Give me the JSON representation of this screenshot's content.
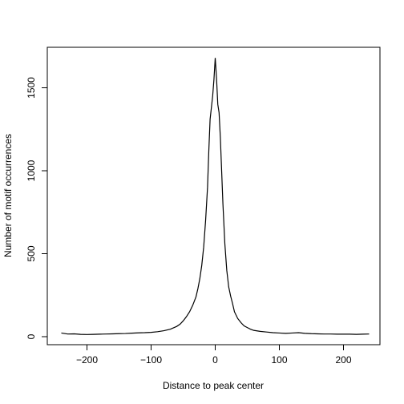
{
  "chart_data": {
    "type": "line",
    "title": "",
    "xlabel": "Distance to peak center",
    "ylabel": "Number of motif occurrences",
    "xlim": [
      -250,
      250
    ],
    "ylim": [
      0,
      1700
    ],
    "xticks": [
      -200,
      -100,
      0,
      100,
      200
    ],
    "xtick_labels": [
      "−200",
      "−100",
      "0",
      "100",
      "200"
    ],
    "yticks": [
      0,
      500,
      1000,
      1500
    ],
    "ytick_labels": [
      "0",
      "500",
      "1000",
      "1500"
    ],
    "grid": false,
    "legend": "none",
    "series": [
      {
        "color": "#000000",
        "x": [
          -240,
          -230,
          -220,
          -210,
          -200,
          -190,
          -180,
          -170,
          -160,
          -150,
          -140,
          -130,
          -120,
          -110,
          -100,
          -90,
          -80,
          -70,
          -60,
          -55,
          -50,
          -45,
          -40,
          -35,
          -30,
          -27,
          -24,
          -21,
          -18,
          -15,
          -12,
          -10,
          -8,
          -6,
          -4,
          -2,
          0,
          2,
          4,
          6,
          8,
          10,
          12,
          15,
          18,
          21,
          24,
          27,
          30,
          35,
          40,
          45,
          50,
          55,
          60,
          70,
          80,
          90,
          100,
          110,
          120,
          130,
          140,
          150,
          160,
          170,
          180,
          190,
          200,
          210,
          220,
          230,
          240
        ],
        "y": [
          22,
          16,
          17,
          14,
          13,
          14,
          15,
          16,
          17,
          18,
          19,
          21,
          23,
          24,
          26,
          30,
          36,
          45,
          62,
          75,
          95,
          120,
          150,
          190,
          240,
          290,
          350,
          430,
          540,
          700,
          900,
          1120,
          1310,
          1380,
          1450,
          1550,
          1680,
          1560,
          1400,
          1350,
          1200,
          1000,
          800,
          560,
          400,
          300,
          245,
          200,
          150,
          110,
          85,
          65,
          55,
          45,
          38,
          32,
          28,
          24,
          22,
          20,
          22,
          24,
          20,
          18,
          17,
          16,
          16,
          15,
          15,
          15,
          14,
          15,
          16
        ]
      }
    ]
  }
}
